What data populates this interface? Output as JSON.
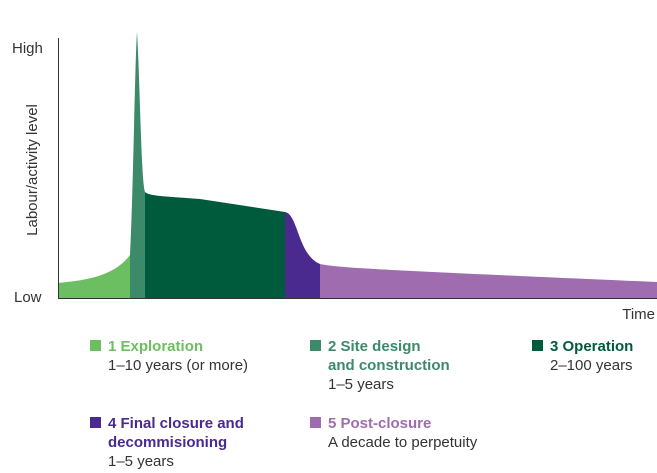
{
  "axes": {
    "y_high": "High",
    "y_low": "Low",
    "y_label": "Labour/activity level",
    "x_label": "Time"
  },
  "phases": [
    {
      "name": [
        "1 Exploration"
      ],
      "duration": "1–10 years (or more)",
      "color": "#6cbf60"
    },
    {
      "name": [
        "2 Site design",
        "and construction"
      ],
      "duration": "1–5 years",
      "color": "#3d8a6b"
    },
    {
      "name": [
        "3 Operation"
      ],
      "duration": "2–100 years",
      "color": "#005a3c"
    },
    {
      "name": [
        "4 Final closure and",
        "decommisioning"
      ],
      "duration": "1–5 years",
      "color": "#4a2a8e"
    },
    {
      "name": [
        "5 Post-closure"
      ],
      "duration": "A decade to perpetuity",
      "color": "#a06cb0"
    }
  ]
}
